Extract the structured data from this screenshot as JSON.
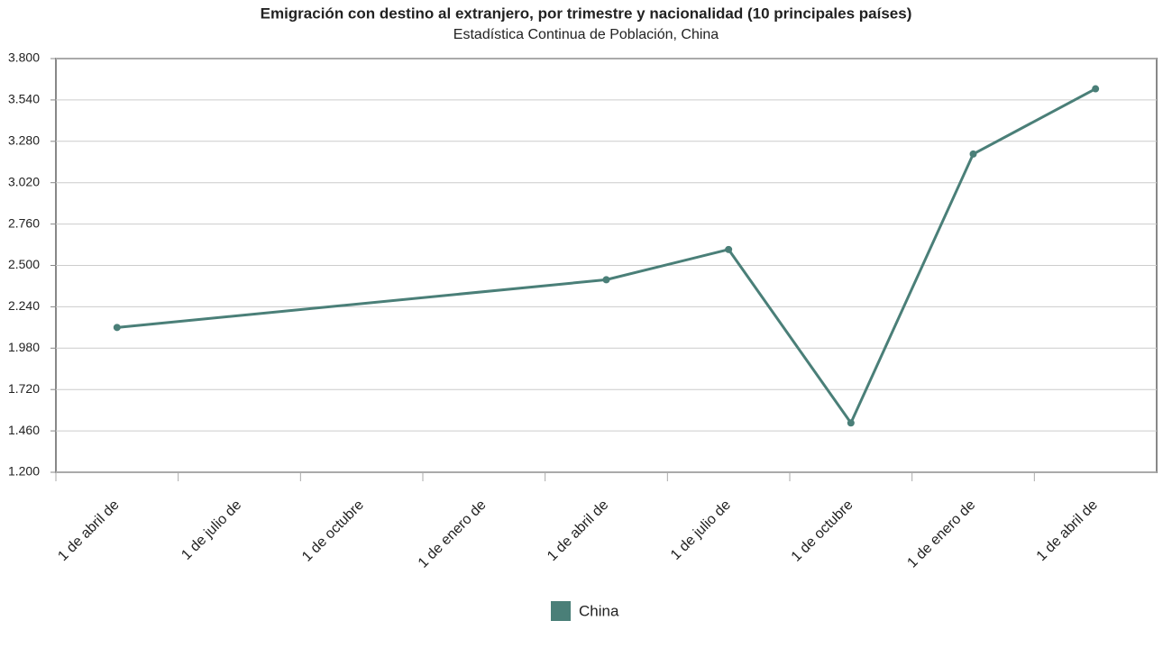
{
  "chart_data": {
    "type": "line",
    "title": "Emigración con destino al extranjero, por trimestre y nacionalidad (10 principales países)",
    "subtitle": "Estadística Continua de Población, China",
    "categories": [
      "1 de abril de",
      "1 de julio de",
      "1 de octubre",
      "1 de enero de",
      "1 de abril de",
      "1 de julio de",
      "1 de octubre",
      "1 de enero de",
      "1 de abril de"
    ],
    "series": [
      {
        "name": "China",
        "color": "#4a7f78",
        "values": [
          2110,
          null,
          null,
          null,
          2410,
          2600,
          1510,
          3200,
          3610
        ]
      }
    ],
    "connect_nulls": true,
    "ylim": [
      1200,
      3800
    ],
    "yticks": [
      {
        "value": 1200,
        "label": "1.200"
      },
      {
        "value": 1460,
        "label": "1.460"
      },
      {
        "value": 1720,
        "label": "1.720"
      },
      {
        "value": 1980,
        "label": "1.980"
      },
      {
        "value": 2240,
        "label": "2.240"
      },
      {
        "value": 2500,
        "label": "2.500"
      },
      {
        "value": 2760,
        "label": "2.760"
      },
      {
        "value": 3020,
        "label": "3.020"
      },
      {
        "value": 3280,
        "label": "3.280"
      },
      {
        "value": 3540,
        "label": "3.540"
      },
      {
        "value": 3800,
        "label": "3.800"
      }
    ],
    "grid": true
  }
}
